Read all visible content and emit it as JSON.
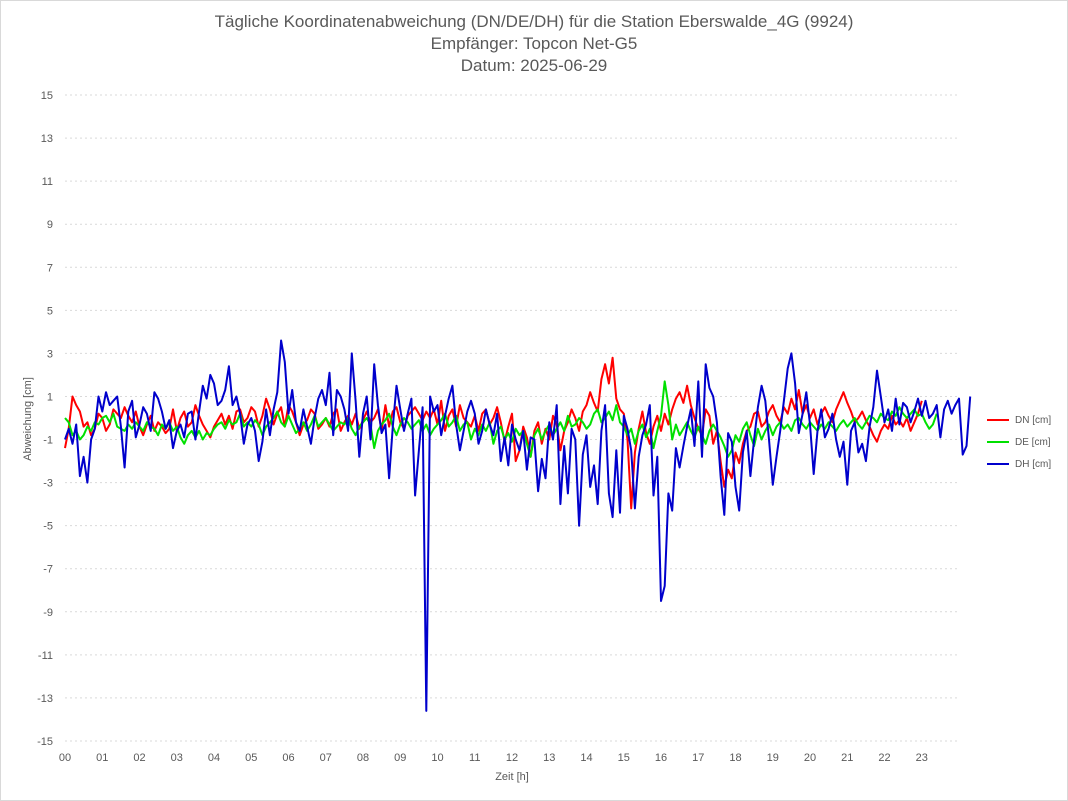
{
  "chart_data": {
    "type": "line",
    "title": "Tägliche Koordinatenabweichung (DN/DE/DH) für die Station Eberswalde_4G (9924)",
    "subtitle": "Empfänger: Topcon Net-G5",
    "date_line": "Datum: 2025-06-29",
    "xlabel": "Zeit [h]",
    "ylabel": "Abweichung [cm]",
    "xlim": [
      0,
      24
    ],
    "ylim": [
      -15,
      15
    ],
    "x_ticks": [
      "00",
      "01",
      "02",
      "03",
      "04",
      "05",
      "06",
      "07",
      "08",
      "09",
      "10",
      "11",
      "12",
      "13",
      "14",
      "15",
      "16",
      "17",
      "18",
      "19",
      "20",
      "21",
      "22",
      "23"
    ],
    "y_ticks": [
      15,
      13,
      11,
      9,
      7,
      5,
      3,
      1,
      -1,
      -3,
      -5,
      -7,
      -9,
      -11,
      -13,
      -15
    ],
    "grid": "horizontal-dotted",
    "legend_position": "right",
    "x_step_hours": 0.1,
    "series": [
      {
        "name": "DN [cm]",
        "color": "#ff0000",
        "values": [
          -1.4,
          -0.5,
          1.0,
          0.6,
          0.3,
          -0.4,
          -0.2,
          -0.8,
          -0.5,
          0.2,
          0.0,
          -0.6,
          -0.3,
          0.4,
          0.2,
          0.0,
          0.5,
          0.1,
          -0.2,
          0.3,
          -0.4,
          -0.8,
          -0.3,
          0.1,
          -0.6,
          -0.2,
          -0.4,
          -0.7,
          -0.5,
          0.4,
          -0.6,
          0.0,
          0.3,
          -0.4,
          -0.2,
          0.6,
          0.1,
          -0.3,
          -0.6,
          -0.9,
          -0.4,
          -0.1,
          0.2,
          -0.3,
          0.1,
          -0.5,
          0.3,
          0.4,
          -0.2,
          0.0,
          0.5,
          0.3,
          -0.4,
          0.1,
          0.9,
          0.4,
          -0.3,
          0.2,
          0.5,
          -0.4,
          0.6,
          0.3,
          -0.2,
          -0.8,
          -0.3,
          -0.1,
          0.4,
          0.2,
          -0.5,
          -0.3,
          0.0,
          -0.4,
          0.2,
          0.4,
          -0.6,
          -0.2,
          0.1,
          -0.3,
          0.2,
          -0.5,
          -0.1,
          0.3,
          -0.2,
          0.0,
          0.4,
          -0.6,
          0.6,
          -0.4,
          0.3,
          0.5,
          -0.2,
          -0.5,
          0.1,
          0.3,
          0.5,
          0.2,
          -0.1,
          0.3,
          0.0,
          0.4,
          -0.3,
          0.8,
          -0.6,
          0.1,
          0.4,
          -0.4,
          0.6,
          0.0,
          -0.2,
          -0.4,
          0.1,
          -0.6,
          0.2,
          0.4,
          -0.3,
          0.0,
          0.5,
          -0.2,
          -1.1,
          -0.4,
          0.2,
          -2.0,
          -1.5,
          -0.4,
          -0.9,
          -1.8,
          -0.6,
          -0.2,
          -1.2,
          -0.5,
          -1.0,
          0.1,
          -0.3,
          -1.5,
          -0.6,
          -0.2,
          0.4,
          0.0,
          -0.6,
          0.3,
          0.6,
          1.2,
          0.7,
          0.3,
          1.8,
          2.5,
          1.6,
          2.8,
          0.9,
          0.4,
          0.2,
          -1.0,
          -4.2,
          -1.6,
          -0.5,
          0.3,
          -0.7,
          -1.2,
          -0.4,
          0.1,
          -0.6,
          0.2,
          -0.3,
          0.4,
          0.9,
          1.2,
          0.7,
          1.5,
          0.6,
          0.0,
          -0.5,
          -0.8,
          0.4,
          0.1,
          -1.2,
          -0.6,
          -2.0,
          -3.2,
          -2.4,
          -2.8,
          -1.6,
          -2.1,
          -1.2,
          -0.6,
          -0.4,
          0.2,
          0.3,
          -0.4,
          -0.2,
          0.3,
          0.6,
          0.1,
          -0.2,
          0.5,
          0.2,
          0.9,
          0.4,
          1.3,
          0.2,
          0.6,
          0.0,
          0.4,
          -0.3,
          0.2,
          0.5,
          0.1,
          -0.2,
          0.4,
          0.8,
          1.2,
          0.7,
          0.3,
          -0.2,
          0.0,
          0.3,
          -0.1,
          -0.4,
          -0.8,
          -1.1,
          -0.6,
          -0.3,
          -0.5,
          0.1,
          -0.3,
          -0.1,
          -0.4,
          0.0,
          -0.6,
          -0.2,
          0.2,
          0.8
        ],
        "label_note": ""
      },
      {
        "name": "DE [cm]",
        "color": "#00e000",
        "values": [
          0.0,
          -0.2,
          -0.8,
          -0.6,
          -1.0,
          -0.8,
          -0.4,
          -0.6,
          -0.2,
          -0.3,
          0.0,
          0.1,
          -0.2,
          0.2,
          -0.4,
          -0.5,
          -0.6,
          -0.3,
          -0.5,
          -0.2,
          -0.4,
          -0.6,
          -0.2,
          -0.4,
          -0.5,
          -0.8,
          -0.3,
          -0.5,
          -0.2,
          -0.6,
          -0.4,
          -0.9,
          -1.2,
          -0.8,
          -0.6,
          -0.9,
          -0.6,
          -1.0,
          -0.7,
          -0.8,
          -0.5,
          -0.3,
          -0.2,
          -0.5,
          -0.1,
          -0.3,
          -0.2,
          0.2,
          -0.4,
          -0.2,
          -0.4,
          -0.1,
          -0.3,
          -0.8,
          -0.4,
          -0.2,
          0.0,
          0.3,
          -0.2,
          -0.4,
          0.1,
          -0.3,
          -0.7,
          -0.5,
          -0.2,
          -0.6,
          -0.3,
          0.1,
          -0.4,
          -0.2,
          0.0,
          -0.3,
          -0.6,
          -0.4,
          -0.2,
          -0.3,
          0.0,
          -0.5,
          -0.8,
          -0.4,
          -0.2,
          0.0,
          -0.3,
          -1.4,
          -0.6,
          -0.3,
          -0.1,
          0.2,
          -0.4,
          -0.8,
          -0.3,
          0.0,
          -0.2,
          -0.5,
          -0.3,
          -0.1,
          -0.6,
          -0.3,
          -0.8,
          -0.5,
          -0.3,
          -0.1,
          0.2,
          -0.4,
          -0.2,
          0.1,
          -0.6,
          -0.3,
          -0.2,
          -1.0,
          -0.5,
          -0.8,
          -0.3,
          -0.6,
          -0.2,
          -1.2,
          -0.6,
          -0.4,
          -1.0,
          -0.7,
          -1.1,
          -0.5,
          -0.8,
          -0.6,
          -1.2,
          -1.8,
          -0.8,
          -0.5,
          -1.0,
          -0.6,
          -0.3,
          -0.8,
          -0.5,
          -0.2,
          -0.6,
          0.1,
          -0.4,
          -0.3,
          0.0,
          -0.2,
          -0.5,
          -0.3,
          0.2,
          0.4,
          -0.2,
          0.0,
          0.3,
          -0.1,
          0.6,
          -0.2,
          -0.4,
          -0.8,
          -0.5,
          -1.2,
          -0.6,
          -0.3,
          -0.9,
          -0.5,
          -1.4,
          -0.6,
          0.1,
          1.7,
          0.6,
          -1.0,
          -0.3,
          -0.8,
          -0.5,
          -0.2,
          -0.6,
          -0.9,
          -0.4,
          -0.8,
          -1.2,
          -0.6,
          -0.3,
          -0.6,
          -0.9,
          -1.3,
          -1.8,
          -1.5,
          -0.8,
          -1.1,
          -0.5,
          -0.2,
          -0.8,
          -1.3,
          -0.5,
          -1.0,
          -0.6,
          -0.3,
          -0.8,
          -0.4,
          -0.2,
          -0.5,
          -0.3,
          -0.6,
          -0.1,
          0.0,
          -0.3,
          -0.5,
          -0.2,
          -0.4,
          -0.6,
          -0.3,
          -0.5,
          -0.2,
          -0.4,
          -0.6,
          -0.3,
          -0.1,
          -0.4,
          -0.2,
          0.0,
          -0.3,
          -0.5,
          -0.2,
          0.1,
          0.0,
          -0.2,
          0.2,
          0.0,
          -0.1,
          0.3,
          0.1,
          0.5,
          0.2,
          0.0,
          0.2,
          0.4,
          0.1,
          0.2,
          -0.2,
          -0.5,
          -0.3,
          0.2
        ],
        "label_note": ""
      },
      {
        "name": "DH [cm]",
        "color": "#0000cc",
        "values": [
          -1.0,
          -0.5,
          -1.2,
          -0.3,
          -2.7,
          -1.8,
          -3.0,
          -1.0,
          -0.5,
          1.0,
          0.3,
          1.2,
          0.6,
          0.8,
          1.0,
          -0.4,
          -2.3,
          0.3,
          0.8,
          -0.9,
          -0.3,
          0.5,
          0.2,
          -0.6,
          1.2,
          0.9,
          0.3,
          -0.5,
          -0.1,
          -1.4,
          -0.6,
          -0.3,
          -0.9,
          0.2,
          0.3,
          -1.0,
          0.3,
          1.5,
          0.9,
          2.0,
          1.6,
          0.6,
          0.8,
          1.3,
          2.4,
          0.6,
          1.0,
          0.2,
          -1.2,
          -0.3,
          0.0,
          -0.6,
          -2.0,
          -1.1,
          0.4,
          -0.8,
          0.4,
          1.2,
          3.6,
          2.6,
          0.2,
          1.3,
          -0.2,
          -0.6,
          0.4,
          -0.4,
          -1.2,
          0.0,
          0.9,
          1.3,
          0.6,
          2.1,
          -0.8,
          1.3,
          1.0,
          0.4,
          -0.6,
          3.0,
          0.8,
          -1.8,
          0.2,
          1.0,
          -1.0,
          2.5,
          0.6,
          -0.7,
          -0.3,
          -2.8,
          -0.4,
          1.5,
          0.4,
          -0.6,
          0.2,
          0.9,
          -3.6,
          -1.5,
          0.5,
          -13.6,
          1.0,
          0.3,
          0.6,
          -0.8,
          0.1,
          0.9,
          1.5,
          -0.3,
          -1.5,
          -0.6,
          0.3,
          0.8,
          0.2,
          -1.2,
          -0.6,
          0.4,
          -0.3,
          -0.8,
          0.2,
          -2.0,
          -0.9,
          -2.2,
          -0.3,
          -1.0,
          -1.5,
          -0.6,
          -2.4,
          -0.9,
          -1.0,
          -3.4,
          -1.9,
          -2.8,
          -0.2,
          -1.0,
          0.6,
          -4.0,
          -1.3,
          -3.5,
          -0.5,
          -1.0,
          -5.0,
          -1.7,
          -0.8,
          -3.2,
          -2.2,
          -4.0,
          -0.6,
          0.6,
          -3.5,
          -4.6,
          -1.5,
          -4.4,
          0.1,
          -0.5,
          -1.5,
          -4.2,
          -1.8,
          -0.8,
          -0.3,
          0.6,
          -3.6,
          -1.8,
          -8.5,
          -7.8,
          -3.5,
          -4.3,
          -1.4,
          -2.3,
          -1.3,
          -0.4,
          0.4,
          -1.3,
          1.7,
          -1.8,
          2.5,
          1.4,
          1.0,
          -0.2,
          -2.7,
          -4.5,
          -0.7,
          -1.1,
          -3.2,
          -4.3,
          -1.6,
          -0.6,
          -2.7,
          -1.0,
          0.5,
          1.5,
          0.8,
          -1.0,
          -3.1,
          -1.8,
          -0.6,
          0.8,
          2.3,
          3.0,
          1.6,
          -0.7,
          0.2,
          1.2,
          -0.3,
          -2.6,
          -0.6,
          0.4,
          -0.9,
          -0.5,
          0.2,
          -1.0,
          -1.8,
          -1.1,
          -3.1,
          -0.6,
          -0.2,
          -1.6,
          -1.2,
          -2.0,
          -0.4,
          0.5,
          2.2,
          1.0,
          -0.2,
          0.4,
          -0.6,
          0.9,
          -0.3,
          0.7,
          0.5,
          -0.2,
          0.3,
          0.9,
          0.1,
          0.8,
          0.0,
          0.2,
          0.6,
          -0.9,
          0.4,
          0.8,
          0.2,
          0.6,
          0.9,
          -1.7,
          -1.3,
          1.0
        ],
        "label_note": ""
      }
    ]
  }
}
